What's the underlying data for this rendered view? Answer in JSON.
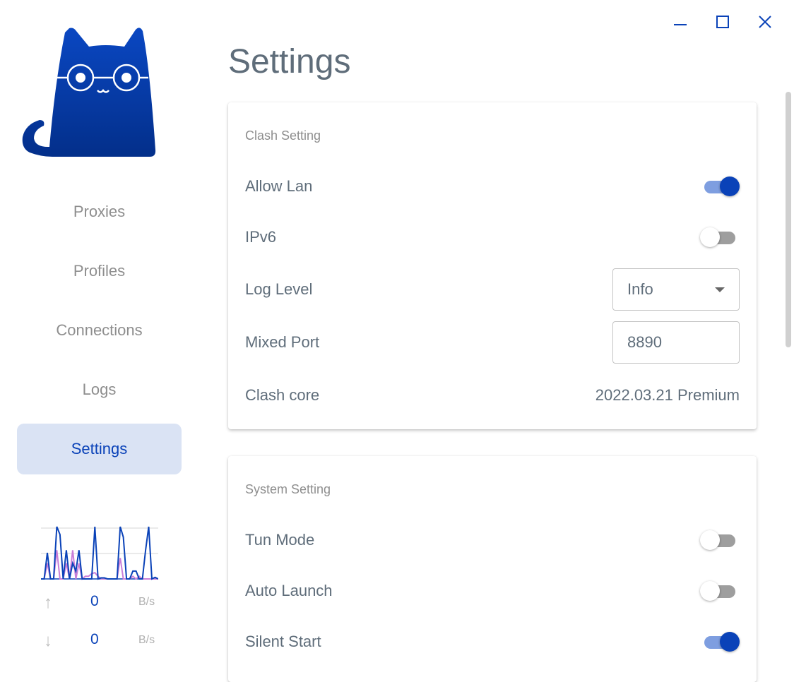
{
  "window": {
    "controls": [
      "minimize-icon",
      "maximize-icon",
      "close-icon"
    ],
    "accent": "#0a42b8"
  },
  "sidebar": {
    "items": [
      {
        "label": "Proxies",
        "active": false
      },
      {
        "label": "Profiles",
        "active": false
      },
      {
        "label": "Connections",
        "active": false
      },
      {
        "label": "Logs",
        "active": false
      },
      {
        "label": "Settings",
        "active": true
      }
    ],
    "traffic": {
      "upload": {
        "value": "0",
        "unit": "B/s"
      },
      "download": {
        "value": "0",
        "unit": "B/s"
      },
      "graph": {
        "upload_series": [
          0,
          0,
          0.5,
          0,
          0,
          1,
          0.85,
          0,
          0.55,
          0,
          0.3,
          0.15,
          0.55,
          0,
          0,
          0,
          0,
          1,
          0,
          0.02,
          0.02,
          0,
          0,
          0,
          0,
          1,
          0.8,
          0,
          0,
          0.15,
          0.15,
          0,
          0,
          0.55,
          1,
          0,
          0.03,
          0
        ],
        "download_series": [
          0,
          0,
          0.3,
          0,
          0,
          0.55,
          0,
          0,
          0.3,
          0,
          0.55,
          0,
          0.3,
          0,
          0.05,
          0.05,
          0.1,
          0.12,
          0.05,
          0,
          0,
          0,
          0,
          0,
          0,
          0.4,
          0,
          0,
          0,
          0.05,
          0,
          0.05,
          0,
          0,
          0,
          0,
          0,
          0
        ],
        "upload_color": "#0a42b8",
        "download_color": "#c97ed8"
      }
    }
  },
  "page": {
    "title": "Settings"
  },
  "clash_setting": {
    "title": "Clash Setting",
    "allow_lan": {
      "label": "Allow Lan",
      "on": true
    },
    "ipv6": {
      "label": "IPv6",
      "on": false
    },
    "log_level": {
      "label": "Log Level",
      "value": "Info"
    },
    "mixed_port": {
      "label": "Mixed Port",
      "value": "8890"
    },
    "clash_core": {
      "label": "Clash core",
      "value": "2022.03.21 Premium"
    }
  },
  "system_setting": {
    "title": "System Setting",
    "tun_mode": {
      "label": "Tun Mode",
      "on": false
    },
    "auto_launch": {
      "label": "Auto Launch",
      "on": false
    },
    "silent_start": {
      "label": "Silent Start",
      "on": true
    }
  }
}
